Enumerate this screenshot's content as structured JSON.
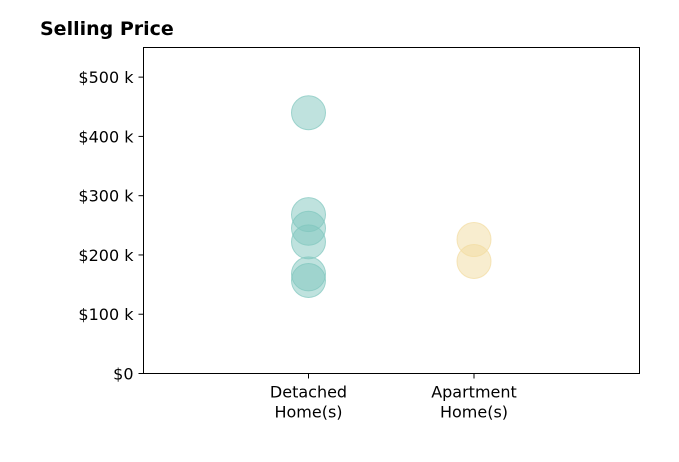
{
  "chart_data": {
    "type": "scatter",
    "title": "Selling Price",
    "xlabel": "",
    "ylabel": "",
    "categories": [
      "Detached\nHome(s)",
      "Apartment\nHome(s)"
    ],
    "ylim": [
      0,
      550000
    ],
    "yticks": [
      {
        "value": 0,
        "label": "$0"
      },
      {
        "value": 100000,
        "label": "$100 k"
      },
      {
        "value": 200000,
        "label": "$200 k"
      },
      {
        "value": 300000,
        "label": "$300 k"
      },
      {
        "value": 400000,
        "label": "$400 k"
      },
      {
        "value": 500000,
        "label": "$500 k"
      }
    ],
    "grid": false,
    "legend": "none",
    "series": [
      {
        "category": "Detached\nHome(s)",
        "color": "#7fc6bd",
        "values": [
          440000,
          268000,
          245000,
          222000,
          168000,
          157000
        ]
      },
      {
        "category": "Apartment\nHome(s)",
        "color": "#f2dca0",
        "values": [
          226000,
          189000
        ]
      }
    ]
  }
}
